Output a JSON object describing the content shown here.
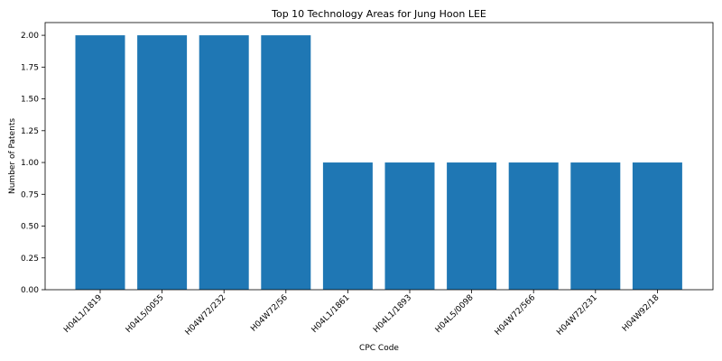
{
  "chart_data": {
    "type": "bar",
    "title": "Top 10 Technology Areas for Jung Hoon LEE",
    "xlabel": "CPC Code",
    "ylabel": "Number of Patents",
    "categories": [
      "H04L1/1819",
      "H04L5/0055",
      "H04W72/232",
      "H04W72/56",
      "H04L1/1861",
      "H04L1/1893",
      "H04L5/0098",
      "H04W72/566",
      "H04W72/231",
      "H04W92/18"
    ],
    "values": [
      2,
      2,
      2,
      2,
      1,
      1,
      1,
      1,
      1,
      1
    ],
    "ylim": [
      0,
      2.1
    ],
    "yticks": [
      "0.00",
      "0.25",
      "0.50",
      "0.75",
      "1.00",
      "1.25",
      "1.50",
      "1.75",
      "2.00"
    ],
    "bar_color": "#1f77b4",
    "grid": false,
    "legend": "none"
  }
}
